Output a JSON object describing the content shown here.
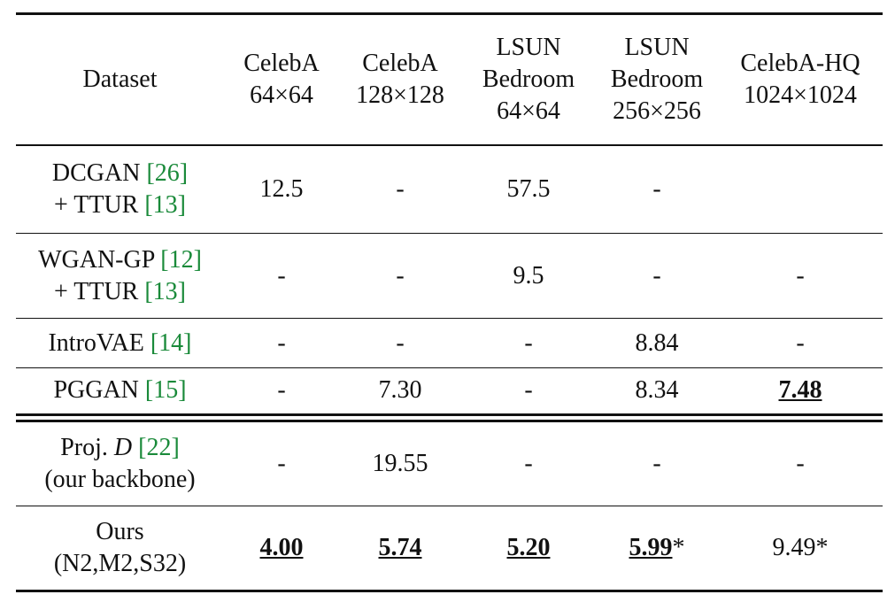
{
  "table": {
    "headers": [
      [
        "Dataset"
      ],
      [
        "CelebA",
        "64×64"
      ],
      [
        "CelebA",
        "128×128"
      ],
      [
        "LSUN",
        "Bedroom",
        "64×64"
      ],
      [
        "LSUN",
        "Bedroom",
        "256×256"
      ],
      [
        "CelebA-HQ",
        "1024×1024"
      ]
    ],
    "rows": [
      {
        "method": [
          [
            "DCGAN",
            "[26]"
          ],
          [
            "+ TTUR",
            "[13]"
          ]
        ],
        "cells": [
          "12.5",
          "-",
          "57.5",
          "-",
          ""
        ]
      },
      {
        "method": [
          [
            "WGAN-GP",
            "[12]"
          ],
          [
            "+ TTUR",
            "[13]"
          ]
        ],
        "cells": [
          "-",
          "-",
          "9.5",
          "-",
          "-"
        ]
      },
      {
        "method": [
          [
            "IntroVAE",
            "[14]"
          ]
        ],
        "cells": [
          "-",
          "-",
          "-",
          "8.84",
          "-"
        ]
      },
      {
        "method": [
          [
            "PGGAN",
            "[15]"
          ]
        ],
        "cells": [
          "-",
          "7.30",
          "-",
          "8.34",
          "7.48"
        ]
      },
      {
        "method": [
          [
            "Proj.",
            "D",
            "[22]"
          ],
          [
            "(our backbone)"
          ]
        ],
        "cells": [
          "-",
          "19.55",
          "-",
          "-",
          "-"
        ]
      },
      {
        "method": [
          [
            "Ours"
          ],
          [
            "(N2,M2,S32)"
          ]
        ],
        "cells": [
          "4.00",
          "5.74",
          "5.20",
          {
            "text": "5.99",
            "note": "*"
          },
          {
            "text": "9.49",
            "note": "*"
          }
        ]
      }
    ]
  }
}
